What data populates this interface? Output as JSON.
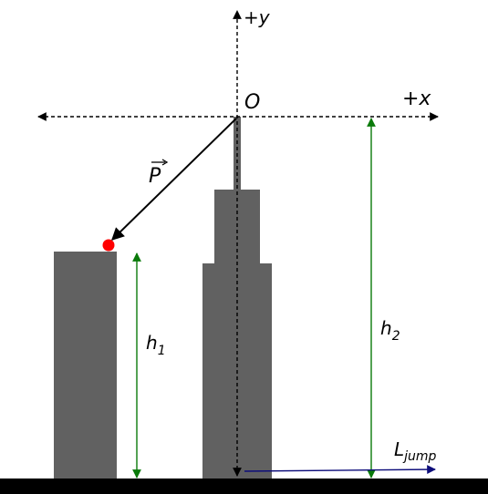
{
  "labels": {
    "plus_y": "+y",
    "plus_x": "+x",
    "origin": "O",
    "vector_p": "P",
    "h1_base": "h",
    "h1_sub": "1",
    "h2_base": "h",
    "h2_sub": "2",
    "ljump_base": "L",
    "ljump_sub": "jump"
  },
  "colors": {
    "building": "#616161",
    "ground": "#000000",
    "height_arrow": "#0a7a0a",
    "jump_arrow": "#0d0d7a",
    "point": "#ff0000",
    "axis": "#000000"
  }
}
